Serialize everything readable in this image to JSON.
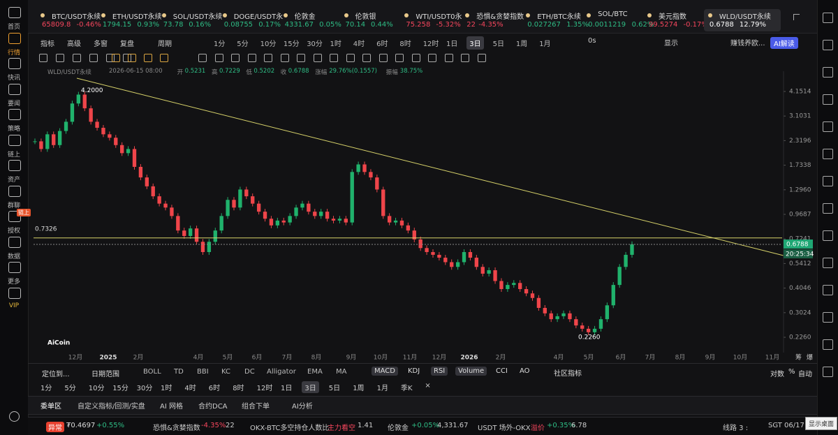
{
  "sidebar": [
    "首页",
    "行情",
    "快讯",
    "要闻",
    "策略",
    "链上",
    "资产",
    "群聊",
    "授权",
    "数据",
    "更多",
    "VIP"
  ],
  "sidebar_badge": "链上",
  "tickers": [
    {
      "name": "BTC/USDT永续",
      "price": "65809.8",
      "change": "-0.46%"
    },
    {
      "name": "ETH/USDT永续",
      "price": "1794.15",
      "change": "0.93%"
    },
    {
      "name": "SOL/USDT永续",
      "price": "73.78",
      "change": "0.16%"
    },
    {
      "name": "DOGE/USDT永",
      "price": "0.08755",
      "change": "0.17%"
    },
    {
      "name": "伦敦金",
      "price": "4331.67",
      "change": "0.05%"
    },
    {
      "name": "伦敦银",
      "price": "70.14",
      "change": "0.44%"
    },
    {
      "name": "WTI/USDT0永",
      "price": "75.258",
      "change": "-5.32%"
    },
    {
      "name": "恐惧&贪婪指数",
      "price": "22",
      "change": "-4.35%"
    },
    {
      "name": "ETH/BTC永续",
      "price": "0.027267",
      "change": "1.35%"
    },
    {
      "name": "SOL/BTC",
      "price": "0.0011219",
      "change": "0.62%"
    },
    {
      "name": "美元指数",
      "price": "99.5274",
      "change": "-0.17%"
    },
    {
      "name": "WLD/USDT永续",
      "price": "0.6788",
      "change": "12.79%"
    }
  ],
  "toolbar": [
    "指标",
    "高级",
    "多窗",
    "复盘",
    "周期"
  ],
  "periods": [
    "1分",
    "5分",
    "10分",
    "15分",
    "30分",
    "1时",
    "4时",
    "6时",
    "8时",
    "12时",
    "1日",
    "3日",
    "5日",
    "1周",
    "1月"
  ],
  "active_period": "3日",
  "toolbar_right": [
    "0s",
    "显示",
    "赚钱养欧...",
    "AI解读"
  ],
  "info": {
    "symbol": "WLD/USDT永续",
    "date": "2026-06-15 08:00",
    "fields": [
      {
        "label": "开",
        "value": "0.5231"
      },
      {
        "label": "高",
        "value": "0.7229"
      },
      {
        "label": "低",
        "value": "0.5202"
      },
      {
        "label": "收",
        "value": "0.6788"
      },
      {
        "label": "涨幅",
        "value": "29.76%(0.1557)"
      },
      {
        "label": "振幅",
        "value": "38.75%"
      }
    ]
  },
  "chart_data": {
    "type": "candlestick",
    "log_scale": true,
    "ylim": [
      0.1885,
      4.857
    ],
    "yticks": [
      4.1514,
      3.1031,
      2.3196,
      1.7338,
      {
        "value": 1.296,
        "label": "1.2960"
      },
      0.9687,
      0.7241,
      0.5412,
      0.4046,
      0.3024,
      {
        "value": 0.226,
        "label": "0.2260"
      }
    ],
    "closes": [
      2.3,
      2.1,
      2.5,
      2.2,
      2.6,
      2.9,
      3.6,
      4.0,
      3.4,
      2.9,
      2.7,
      2.5,
      2.4,
      2.2,
      2.0,
      2.1,
      1.7,
      1.5,
      1.35,
      1.2,
      1.1,
      1.05,
      0.95,
      0.8,
      0.75,
      0.82,
      0.7,
      0.62,
      0.7,
      0.8,
      0.95,
      1.15,
      1.05,
      1.3,
      1.2,
      1.1,
      1.0,
      0.92,
      0.85,
      0.9,
      0.88,
      0.95,
      1.05,
      1.1,
      1.0,
      0.95,
      1.0,
      0.92,
      0.9,
      0.92,
      0.88,
      1.6,
      1.75,
      1.6,
      1.5,
      1.3,
      0.95,
      0.88,
      0.9,
      0.85,
      0.8,
      0.72,
      0.65,
      0.62,
      0.6,
      0.58,
      0.55,
      0.52,
      0.55,
      0.62,
      0.58,
      0.52,
      0.48,
      0.5,
      0.44,
      0.4,
      0.42,
      0.43,
      0.4,
      0.38,
      0.36,
      0.32,
      0.3,
      0.28,
      0.29,
      0.3,
      0.28,
      0.26,
      0.25,
      0.24,
      0.25,
      0.28,
      0.33,
      0.42,
      0.52,
      0.6,
      0.68
    ],
    "up_color": "#20b26c",
    "down_color": "#ef454a",
    "high_label": {
      "value": 4.2,
      "label": "4.2000"
    },
    "low_label": {
      "value": 0.226,
      "label": "0.2260"
    },
    "hline": 0.7326,
    "last_price": 0.6788,
    "countdown": "20:25:34",
    "x_labels": [
      "12月",
      "2025",
      "2月",
      "4月",
      "5月",
      "6月",
      "7月",
      "8月",
      "9月",
      "10月",
      "11月",
      "12月",
      "2026",
      "2月",
      "4月",
      "5月",
      "6月",
      "7月",
      "8月",
      "9月",
      "10月",
      "11月"
    ],
    "axis_buttons": [
      "筹",
      "爆"
    ],
    "logo": "AiCoin"
  },
  "indicator_bar": {
    "left": [
      "定位到...",
      "日期范围"
    ],
    "main": [
      "BOLL",
      "TD",
      "BBI",
      "KC",
      "DC",
      "Alligator",
      "EMA",
      "MA"
    ],
    "sub": [
      "MACD",
      "KDJ",
      "RSI",
      "Volume",
      "CCI",
      "AO",
      "社区指标"
    ],
    "right": [
      "对数",
      "%",
      "自动"
    ]
  },
  "periods2": [
    "1分",
    "5分",
    "10分",
    "15分",
    "30分",
    "1时",
    "4时",
    "6时",
    "8时",
    "12时",
    "1日",
    "3日",
    "5日",
    "1周",
    "1月",
    "季K",
    "×"
  ],
  "tabs": [
    "委单区",
    "自定义指标/回测/实盘",
    "AI 网格",
    "合约DCA",
    "组合下单",
    "AI分析"
  ],
  "status": [
    "异常",
    "₮0.4697",
    "+0.55%",
    "恐惧&贪婪指数",
    "-4.35%",
    "22",
    "OKX-BTC多空持仓人数比",
    "主力看空",
    "1.41",
    "伦敦金",
    "+0.05%",
    "4,331.67",
    "USDT 场外-OKX",
    "溢价",
    "+0.35%",
    "6.78",
    "线路 3 :",
    "SGT 06/17"
  ],
  "tooltip": "显示桌面"
}
